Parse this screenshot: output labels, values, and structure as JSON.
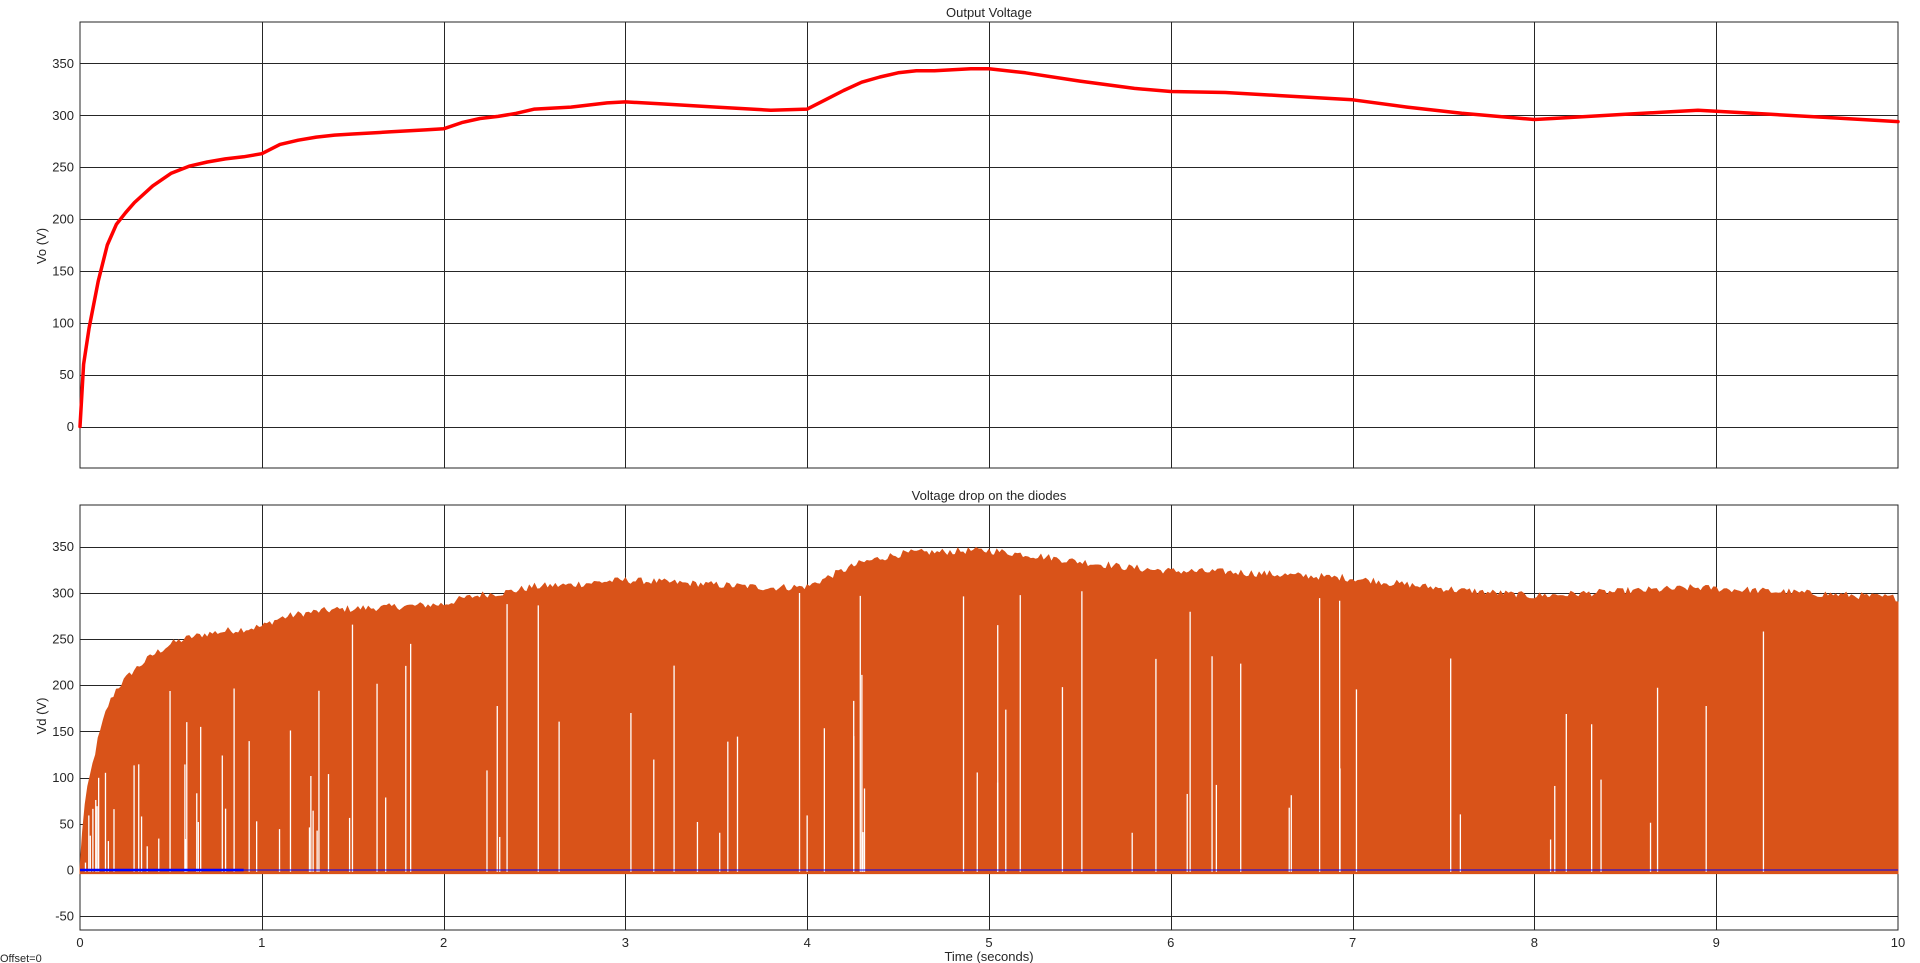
{
  "chart_data": [
    {
      "type": "line",
      "title": "Output Voltage",
      "ylabel": "Vo (V)",
      "xlabel": "",
      "xlim": [
        0,
        10
      ],
      "ylim": [
        -40,
        390
      ],
      "grid": true,
      "xticks": [
        0,
        1,
        2,
        3,
        4,
        5,
        6,
        7,
        8,
        9,
        10
      ],
      "yticks": [
        0,
        50,
        100,
        150,
        200,
        250,
        300,
        350
      ],
      "series": [
        {
          "color": "#ff0000",
          "x": [
            0,
            0.02,
            0.05,
            0.1,
            0.15,
            0.2,
            0.25,
            0.3,
            0.4,
            0.5,
            0.6,
            0.7,
            0.8,
            0.9,
            1.0,
            1.1,
            1.2,
            1.3,
            1.4,
            1.5,
            1.6,
            1.7,
            1.8,
            1.9,
            2.0,
            2.1,
            2.2,
            2.3,
            2.4,
            2.5,
            2.6,
            2.7,
            2.8,
            2.9,
            3.0,
            3.2,
            3.5,
            3.8,
            4.0,
            4.1,
            4.2,
            4.3,
            4.4,
            4.5,
            4.6,
            4.7,
            4.8,
            4.9,
            5.0,
            5.2,
            5.5,
            5.8,
            6.0,
            6.3,
            6.6,
            7.0,
            7.3,
            7.6,
            8.0,
            8.1,
            8.3,
            8.5,
            8.7,
            8.9,
            9.0,
            9.3,
            9.6,
            10.0
          ],
          "y": [
            0,
            60,
            95,
            140,
            175,
            195,
            206,
            216,
            232,
            244,
            251,
            255,
            258,
            260,
            263,
            272,
            276,
            279,
            281,
            282,
            283,
            284,
            285,
            286,
            287,
            293,
            297,
            299,
            302,
            306,
            307,
            308,
            310,
            312,
            313,
            311,
            308,
            305,
            306,
            315,
            324,
            332,
            337,
            341,
            343,
            343,
            344,
            345,
            345,
            341,
            333,
            326,
            323,
            322,
            319,
            315,
            308,
            302,
            296,
            297,
            299,
            301,
            303,
            305,
            304,
            301,
            298,
            294
          ]
        }
      ]
    },
    {
      "type": "area",
      "title": "Voltage drop on the diodes",
      "ylabel": "Vd (V)",
      "xlabel": "Time (seconds)",
      "xlim": [
        0,
        10
      ],
      "ylim": [
        -65,
        395
      ],
      "grid": true,
      "xticks": [
        0,
        1,
        2,
        3,
        4,
        5,
        6,
        7,
        8,
        9,
        10
      ],
      "yticks": [
        -50,
        0,
        50,
        100,
        150,
        200,
        250,
        300,
        350
      ],
      "series": [
        {
          "color": "#d95319",
          "x": [
            0,
            0.02,
            0.05,
            0.1,
            0.15,
            0.2,
            0.25,
            0.3,
            0.4,
            0.5,
            0.6,
            0.7,
            0.8,
            0.9,
            1.0,
            1.1,
            1.2,
            1.3,
            1.4,
            1.5,
            1.6,
            1.7,
            1.8,
            1.9,
            2.0,
            2.1,
            2.2,
            2.3,
            2.4,
            2.5,
            2.6,
            2.7,
            2.8,
            2.9,
            3.0,
            3.2,
            3.5,
            3.8,
            4.0,
            4.1,
            4.2,
            4.3,
            4.4,
            4.5,
            4.6,
            4.7,
            4.8,
            4.9,
            5.0,
            5.2,
            5.5,
            5.8,
            6.0,
            6.3,
            6.6,
            7.0,
            7.3,
            7.6,
            8.0,
            8.1,
            8.3,
            8.5,
            8.7,
            8.9,
            9.0,
            9.3,
            9.6,
            10.0
          ],
          "y": [
            0,
            60,
            95,
            140,
            175,
            195,
            206,
            216,
            232,
            244,
            251,
            255,
            258,
            260,
            263,
            272,
            276,
            279,
            281,
            282,
            283,
            284,
            285,
            286,
            287,
            293,
            297,
            299,
            302,
            306,
            307,
            308,
            310,
            312,
            313,
            311,
            308,
            305,
            306,
            315,
            324,
            332,
            337,
            341,
            343,
            343,
            344,
            345,
            345,
            341,
            333,
            326,
            323,
            322,
            319,
            315,
            308,
            302,
            296,
            297,
            299,
            301,
            303,
            305,
            304,
            301,
            298,
            294
          ],
          "baseline": -4
        },
        {
          "color": "#0000ff",
          "x": [
            0,
            10
          ],
          "y": [
            0,
            0
          ]
        }
      ]
    }
  ],
  "footer": {
    "offset_label": "Offset=0"
  }
}
